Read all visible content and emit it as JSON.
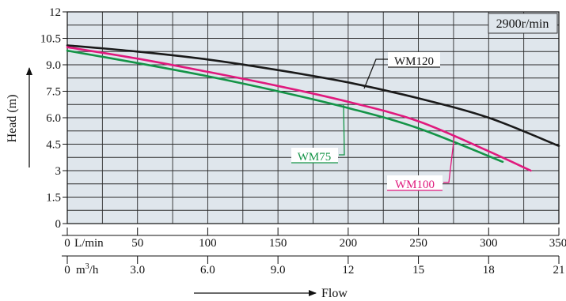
{
  "chart_data": {
    "type": "line",
    "ylabel": "Head (m)",
    "xlabel": "Flow",
    "speed_note": "2900r/min",
    "ylim": [
      0,
      12
    ],
    "xlim": [
      0,
      350
    ],
    "y_ticks": [
      "0",
      "1.5",
      "3",
      "4.5",
      "6.0",
      "7.5",
      "9.0",
      "10.5",
      "12"
    ],
    "x_ticks_lmin": {
      "unit": "L/min",
      "labels": [
        "0",
        "50",
        "100",
        "150",
        "200",
        "250",
        "300",
        "350"
      ]
    },
    "x_ticks_m3h": {
      "unit_prefix": "m",
      "unit_sup": "3",
      "unit_suffix": "/h",
      "labels": [
        "0",
        "3.0",
        "6.0",
        "9.0",
        "12",
        "15",
        "18",
        "21"
      ]
    },
    "grid": true,
    "series": [
      {
        "name": "WM120",
        "color": "#1a1a1a",
        "x": [
          0,
          50,
          100,
          150,
          200,
          250,
          300,
          350
        ],
        "y": [
          10.1,
          9.75,
          9.3,
          8.7,
          8.0,
          7.1,
          6.0,
          4.4
        ]
      },
      {
        "name": "WM100",
        "color": "#e0197d",
        "x": [
          0,
          50,
          100,
          150,
          200,
          250,
          300,
          330
        ],
        "y": [
          10.0,
          9.35,
          8.6,
          7.8,
          6.9,
          5.8,
          4.1,
          3.0
        ]
      },
      {
        "name": "WM75",
        "color": "#149447",
        "x": [
          0,
          50,
          100,
          150,
          200,
          250,
          310
        ],
        "y": [
          9.8,
          9.1,
          8.35,
          7.5,
          6.55,
          5.4,
          3.5
        ]
      }
    ]
  }
}
